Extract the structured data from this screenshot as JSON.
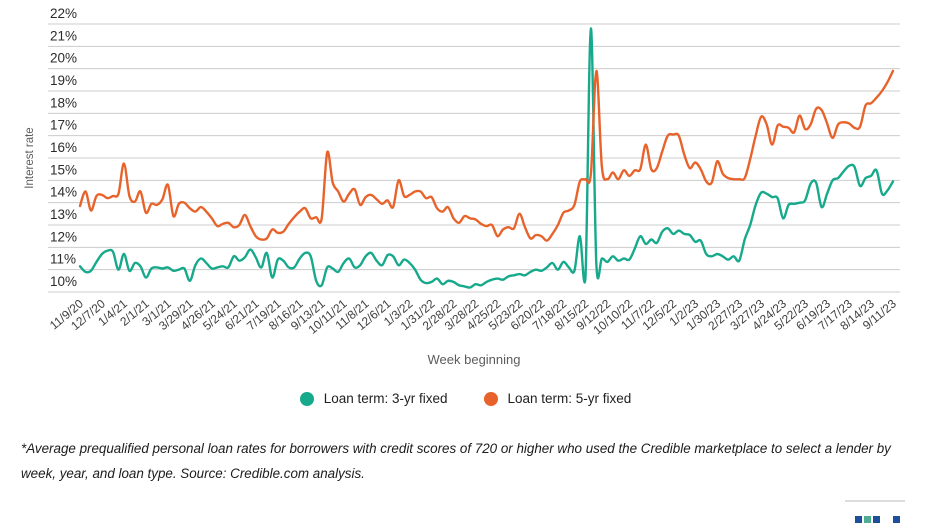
{
  "chart_data": {
    "type": "line",
    "title": "",
    "xlabel": "Week beginning",
    "ylabel": "Interest rate",
    "ylim": [
      10,
      22
    ],
    "grid": "horizontal",
    "legend_position": "bottom",
    "y_ticks": [
      "22%",
      "21%",
      "20%",
      "19%",
      "18%",
      "17%",
      "16%",
      "15%",
      "14%",
      "13%",
      "12%",
      "11%",
      "10%"
    ],
    "x_tick_step": 4,
    "x_tick_labels": [
      "11/9/20",
      "12/7/20",
      "1/4/21",
      "2/1/21",
      "3/1/21",
      "3/29/21",
      "4/26/21",
      "5/24/21",
      "6/21/21",
      "7/19/21",
      "8/16/21",
      "9/13/21",
      "10/11/21",
      "11/8/21",
      "12/6/21",
      "1/3/22",
      "1/31/22",
      "2/28/22",
      "3/28/22",
      "4/25/22",
      "5/23/22",
      "6/20/22",
      "7/18/22",
      "8/15/22",
      "9/12/22",
      "10/10/22",
      "11/7/22",
      "12/5/22",
      "1/2/23",
      "1/30/23",
      "2/27/23",
      "3/27/23",
      "4/24/23",
      "5/22/23",
      "6/19/23",
      "7/17/23",
      "8/14/23",
      "9/11/23"
    ],
    "series": [
      {
        "name": "Loan term: 3-yr fixed",
        "color": "#17a98c",
        "values": [
          11.15,
          10.9,
          10.95,
          11.35,
          11.7,
          11.85,
          11.8,
          11.0,
          11.7,
          10.95,
          11.3,
          11.15,
          10.65,
          11.05,
          11.1,
          11.05,
          11.1,
          10.95,
          11.0,
          11.05,
          10.5,
          11.2,
          11.5,
          11.3,
          11.05,
          11.1,
          11.15,
          11.1,
          11.6,
          11.4,
          11.55,
          11.9,
          11.55,
          11.1,
          11.75,
          10.65,
          11.45,
          11.4,
          11.1,
          11.1,
          11.5,
          11.75,
          11.6,
          10.5,
          10.3,
          11.1,
          11.05,
          10.9,
          11.3,
          11.5,
          11.1,
          11.2,
          11.6,
          11.75,
          11.4,
          11.2,
          11.65,
          11.6,
          11.2,
          11.45,
          11.3,
          11.0,
          10.55,
          10.4,
          10.45,
          10.6,
          10.35,
          10.5,
          10.45,
          10.3,
          10.25,
          10.2,
          10.35,
          10.3,
          10.45,
          10.55,
          10.6,
          10.55,
          10.7,
          10.75,
          10.8,
          10.75,
          10.9,
          11.0,
          10.95,
          11.1,
          11.3,
          11.0,
          11.35,
          11.1,
          10.95,
          12.5,
          10.6,
          21.8,
          11.2,
          11.5,
          11.35,
          11.6,
          11.4,
          11.5,
          11.45,
          11.95,
          12.5,
          12.15,
          12.35,
          12.2,
          12.7,
          12.85,
          12.6,
          12.75,
          12.6,
          12.55,
          12.25,
          12.3,
          11.7,
          11.6,
          11.7,
          11.6,
          11.45,
          11.6,
          11.4,
          12.35,
          13.0,
          13.9,
          14.45,
          14.4,
          14.25,
          14.2,
          13.3,
          13.9,
          13.95,
          14.0,
          14.1,
          14.85,
          14.9,
          13.8,
          14.4,
          15.0,
          15.1,
          15.4,
          15.65,
          15.6,
          14.75,
          15.1,
          15.2,
          15.45,
          14.4,
          14.55,
          14.95
        ]
      },
      {
        "name": "Loan term: 5-yr fixed",
        "color": "#e8632b",
        "values": [
          13.85,
          14.5,
          13.65,
          14.3,
          14.35,
          14.2,
          14.3,
          14.4,
          15.75,
          14.3,
          14.05,
          14.5,
          13.55,
          13.95,
          13.9,
          14.15,
          14.8,
          13.4,
          13.95,
          14.0,
          13.75,
          13.6,
          13.8,
          13.6,
          13.3,
          12.95,
          13.05,
          13.1,
          12.9,
          13.0,
          13.45,
          12.95,
          12.5,
          12.35,
          12.4,
          12.8,
          12.65,
          12.7,
          13.05,
          13.35,
          13.6,
          13.75,
          13.3,
          13.35,
          13.3,
          16.25,
          14.9,
          14.5,
          14.05,
          14.4,
          14.6,
          13.9,
          14.25,
          14.35,
          14.15,
          13.95,
          14.1,
          13.8,
          15.0,
          14.3,
          14.35,
          14.5,
          14.5,
          14.2,
          14.25,
          13.75,
          13.6,
          13.8,
          13.3,
          13.1,
          13.4,
          13.3,
          13.25,
          13.05,
          12.95,
          13.0,
          12.5,
          12.8,
          12.9,
          12.85,
          13.5,
          12.9,
          12.4,
          12.55,
          12.5,
          12.3,
          12.6,
          13.0,
          13.55,
          13.65,
          13.9,
          14.95,
          15.05,
          15.3,
          19.9,
          15.6,
          15.05,
          15.35,
          15.05,
          15.45,
          15.2,
          15.45,
          15.5,
          16.6,
          15.5,
          15.55,
          16.3,
          17.0,
          17.05,
          17.0,
          16.15,
          15.55,
          15.8,
          15.5,
          14.95,
          14.9,
          15.85,
          15.3,
          15.1,
          15.05,
          15.05,
          15.1,
          15.95,
          17.0,
          17.85,
          17.5,
          16.6,
          17.45,
          17.4,
          17.35,
          17.15,
          17.9,
          17.3,
          17.5,
          18.2,
          18.15,
          17.55,
          16.9,
          17.5,
          17.6,
          17.55,
          17.35,
          17.4,
          18.35,
          18.45,
          18.7,
          19.0,
          19.4,
          19.9
        ]
      }
    ]
  },
  "legend": {
    "item_3yr": "Loan term: 3-yr fixed",
    "item_5yr": "Loan term: 5-yr fixed"
  },
  "footnote": "*Average prequalified personal loan rates for borrowers with credit scores of 720 or higher who used the Credible marketplace to select a lender by week, year, and loan type. Source: Credible.com analysis.",
  "partial_widget": {
    "bar_colors": [
      "#1d4f9a",
      "#4fae91",
      "#1d4f9a",
      "#1d4f9a"
    ],
    "divider_color": "#dcdcdc"
  }
}
